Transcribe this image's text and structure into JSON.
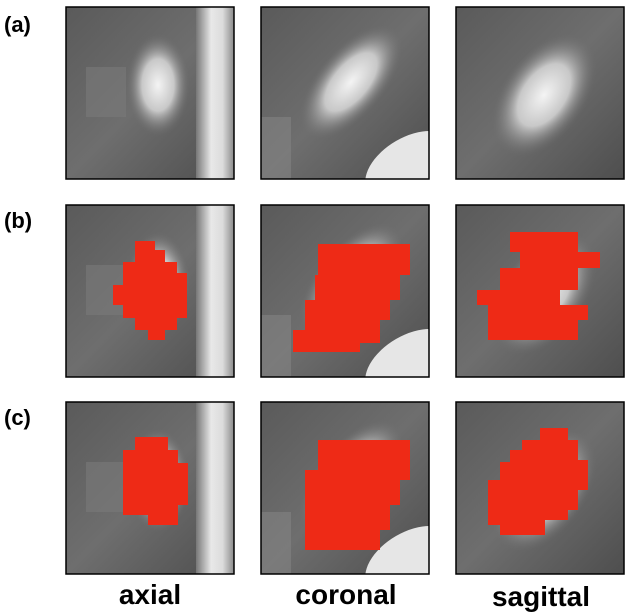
{
  "panels": {
    "rows": [
      "(a)",
      "(b)",
      "(c)"
    ],
    "columns": [
      "axial",
      "coronal",
      "sagittal"
    ]
  }
}
